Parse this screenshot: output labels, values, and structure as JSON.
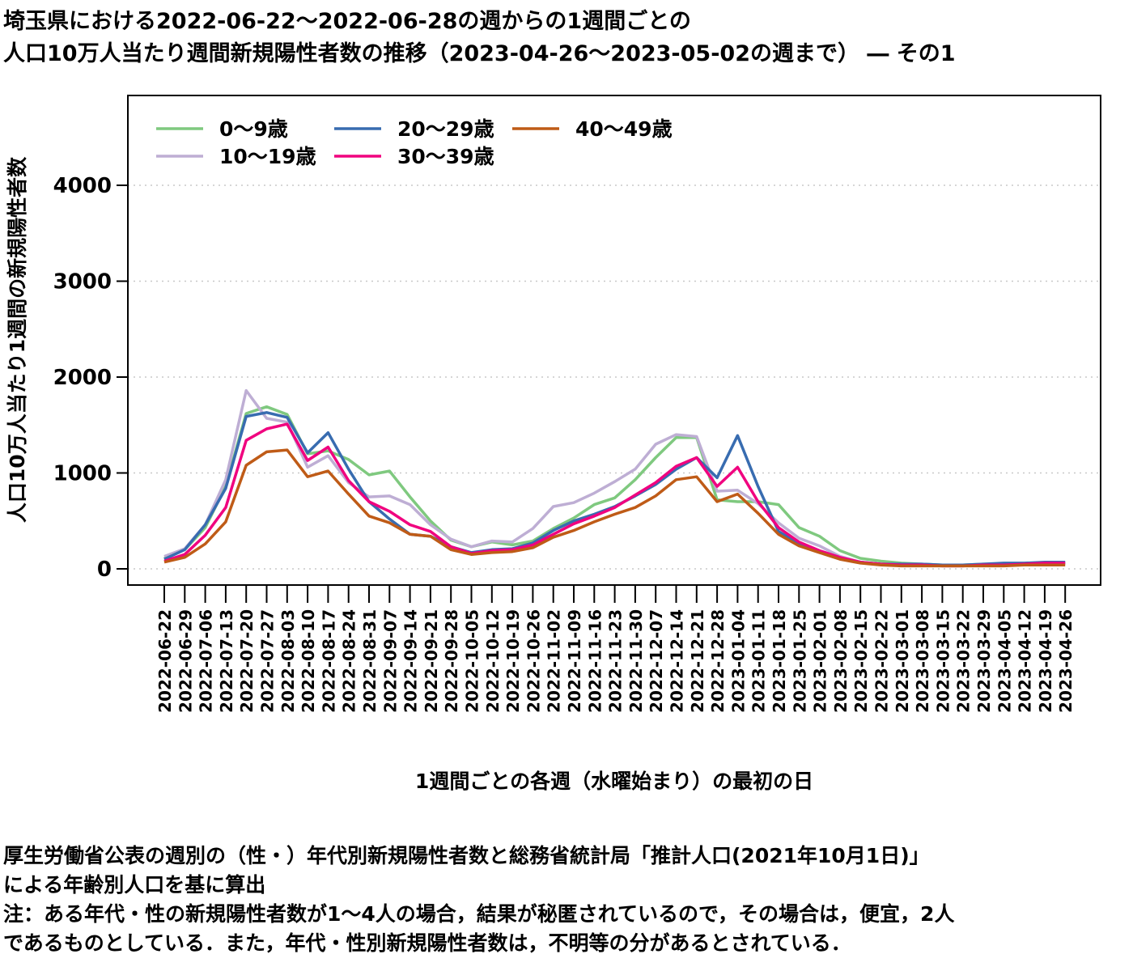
{
  "title_lines": [
    "埼玉県における2022-06-22～2022-06-28の週からの1週間ごとの",
    "人口10万人当たり週間新規陽性者数の推移（2023-04-26～2023-05-02の週まで） ― その1"
  ],
  "notes": [
    "厚生労働省公表の週別の（性・）年代別新規陽性者数と総務省統計局「推計人口(2021年10月1日)」",
    "による年齢別人口を基に算出",
    "注：ある年代・性の新規陽性者数が1～4人の場合，結果が秘匿されているので，その場合は，便宜，2人",
    "であるものとしている．また，年代・性別新規陽性者数は，不明等の分があるとされている．"
  ],
  "chart_data": {
    "type": "line",
    "xlabel": "1週間ごとの各週（水曜始まり）の最初の日",
    "ylabel": "人口10万人当たり1週間の新規陽性者数",
    "ylim": [
      -200,
      4950
    ],
    "yticks": [
      0,
      1000,
      2000,
      3000,
      4000
    ],
    "grid": "horizontal dotted",
    "legend": "top-left",
    "categories": [
      "2022-06-22",
      "2022-06-29",
      "2022-07-06",
      "2022-07-13",
      "2022-07-20",
      "2022-07-27",
      "2022-08-03",
      "2022-08-10",
      "2022-08-17",
      "2022-08-24",
      "2022-08-31",
      "2022-09-07",
      "2022-09-14",
      "2022-09-21",
      "2022-09-28",
      "2022-10-05",
      "2022-10-12",
      "2022-10-19",
      "2022-10-26",
      "2022-11-02",
      "2022-11-09",
      "2022-11-16",
      "2022-11-23",
      "2022-11-30",
      "2022-12-07",
      "2022-12-14",
      "2022-12-21",
      "2022-12-28",
      "2023-01-04",
      "2023-01-11",
      "2023-01-18",
      "2023-01-25",
      "2023-02-01",
      "2023-02-08",
      "2023-02-15",
      "2023-02-22",
      "2023-03-01",
      "2023-03-08",
      "2023-03-15",
      "2023-03-22",
      "2023-03-29",
      "2023-04-05",
      "2023-04-12",
      "2023-04-19",
      "2023-04-26"
    ],
    "series": [
      {
        "name": "0～9歳",
        "color": "#7fc97f",
        "values": [
          110,
          200,
          430,
          860,
          1620,
          1690,
          1610,
          1200,
          1230,
          1140,
          980,
          1020,
          750,
          500,
          300,
          230,
          280,
          250,
          290,
          420,
          530,
          670,
          740,
          930,
          1160,
          1370,
          1370,
          720,
          700,
          700,
          670,
          430,
          340,
          190,
          110,
          80,
          60,
          50,
          40,
          40,
          50,
          50,
          50,
          50,
          60
        ]
      },
      {
        "name": "10～19歳",
        "color": "#beaed4",
        "values": [
          130,
          210,
          460,
          930,
          1860,
          1570,
          1530,
          1060,
          1180,
          900,
          750,
          760,
          670,
          460,
          310,
          230,
          290,
          280,
          420,
          650,
          690,
          790,
          910,
          1040,
          1300,
          1400,
          1380,
          810,
          820,
          680,
          480,
          320,
          240,
          130,
          70,
          50,
          40,
          40,
          30,
          30,
          40,
          40,
          40,
          50,
          60
        ]
      },
      {
        "name": "20～29歳",
        "color": "#386cb0",
        "values": [
          100,
          200,
          460,
          840,
          1590,
          1630,
          1580,
          1210,
          1420,
          1040,
          700,
          520,
          360,
          340,
          230,
          170,
          200,
          210,
          270,
          400,
          500,
          570,
          650,
          760,
          880,
          1040,
          1160,
          950,
          1390,
          860,
          390,
          260,
          180,
          110,
          70,
          50,
          50,
          50,
          40,
          40,
          50,
          60,
          60,
          70,
          70
        ]
      },
      {
        "name": "30～39歳",
        "color": "#f0027f",
        "values": [
          80,
          150,
          350,
          640,
          1340,
          1460,
          1510,
          1130,
          1270,
          920,
          700,
          600,
          460,
          390,
          230,
          160,
          190,
          200,
          250,
          360,
          470,
          550,
          640,
          770,
          900,
          1070,
          1160,
          860,
          1060,
          700,
          430,
          280,
          190,
          120,
          70,
          50,
          40,
          40,
          30,
          30,
          40,
          40,
          50,
          60,
          60
        ]
      },
      {
        "name": "40～49歳",
        "color": "#bf5b17",
        "values": [
          70,
          120,
          260,
          490,
          1080,
          1220,
          1240,
          960,
          1020,
          780,
          550,
          480,
          360,
          340,
          200,
          150,
          170,
          180,
          220,
          330,
          400,
          490,
          570,
          640,
          760,
          930,
          960,
          700,
          780,
          580,
          360,
          240,
          170,
          100,
          60,
          40,
          30,
          30,
          30,
          30,
          30,
          30,
          40,
          40,
          40
        ]
      }
    ]
  }
}
